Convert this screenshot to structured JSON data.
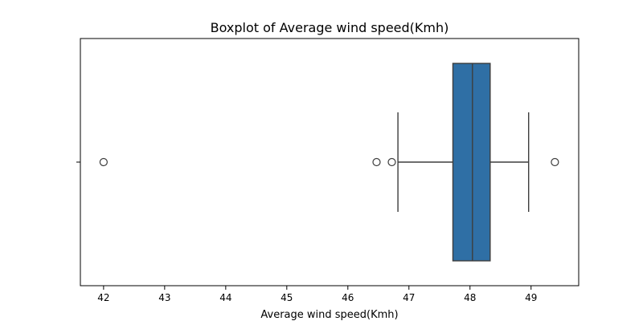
{
  "chart_data": {
    "type": "boxplot",
    "orientation": "horizontal",
    "title": "Boxplot of Average wind speed(Kmh)",
    "xlabel": "Average wind speed(Kmh)",
    "ylabel": "",
    "xlim": [
      41.62,
      49.78
    ],
    "xticks": [
      42,
      43,
      44,
      45,
      46,
      47,
      48,
      49
    ],
    "xtick_labels": [
      "42",
      "43",
      "44",
      "45",
      "46",
      "47",
      "48",
      "49"
    ],
    "grid": false,
    "box": {
      "whisker_low": 46.82,
      "q1": 47.72,
      "median": 48.04,
      "q3": 48.33,
      "whisker_high": 48.96
    },
    "outliers": [
      42.0,
      46.47,
      46.72,
      49.39
    ],
    "colors": {
      "box_fill": "#2f6fa5",
      "line": "#3d3d3d",
      "axes": "#000000"
    }
  }
}
